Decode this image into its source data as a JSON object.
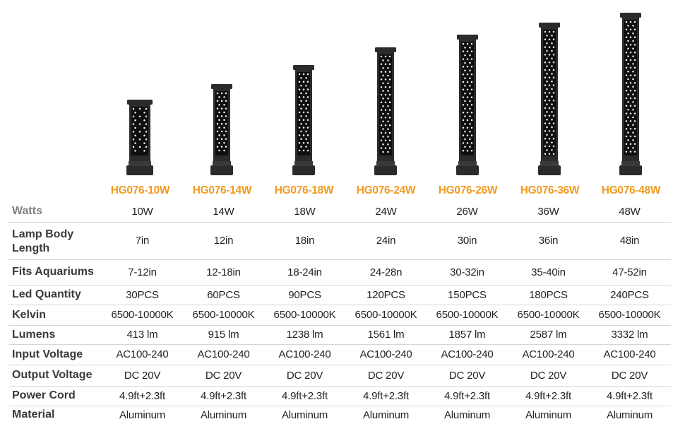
{
  "colors": {
    "accent": "#f19a1f",
    "lamp_body": "#2b2b2b",
    "led": "#f4f4f4"
  },
  "models": [
    "HG076-10W",
    "HG076-14W",
    "HG076-18W",
    "HG076-24W",
    "HG076-26W",
    "HG076-36W",
    "HG076-48W"
  ],
  "rows": [
    {
      "label": "Watts",
      "values": [
        "10W",
        "14W",
        "18W",
        "24W",
        "26W",
        "36W",
        "48W"
      ]
    },
    {
      "label": "Lamp Body Length",
      "values": [
        "7in",
        "12in",
        "18in",
        "24in",
        "30in",
        "36in",
        "48in"
      ]
    },
    {
      "label": "Fits Aquariums",
      "values": [
        "7-12in",
        "12-18in",
        "18-24in",
        "24-28n",
        "30-32in",
        "35-40in",
        "47-52in"
      ]
    },
    {
      "label": "Led Quantity",
      "values": [
        "30PCS",
        "60PCS",
        "90PCS",
        "120PCS",
        "150PCS",
        "180PCS",
        "240PCS"
      ]
    },
    {
      "label": "Kelvin",
      "values": [
        "6500-10000K",
        "6500-10000K",
        "6500-10000K",
        "6500-10000K",
        "6500-10000K",
        "6500-10000K",
        "6500-10000K"
      ]
    },
    {
      "label": "Lumens",
      "values": [
        "413 lm",
        "915 lm",
        "1238 lm",
        "1561 lm",
        "1857 lm",
        "2587 lm",
        "3332 lm"
      ]
    },
    {
      "label": "Input Voltage",
      "values": [
        "AC100-240",
        "AC100-240",
        "AC100-240",
        "AC100-240",
        "AC100-240",
        "AC100-240",
        "AC100-240"
      ]
    },
    {
      "label": "Output Voltage",
      "values": [
        "DC 20V",
        "DC 20V",
        "DC 20V",
        "DC 20V",
        "DC 20V",
        "DC 20V",
        "DC 20V"
      ]
    },
    {
      "label": "Power Cord",
      "values": [
        "4.9ft+2.3ft",
        "4.9ft+2.3ft",
        "4.9ft+2.3ft",
        "4.9ft+2.3ft",
        "4.9ft+2.3ft",
        "4.9ft+2.3ft",
        "4.9ft+2.3ft"
      ]
    },
    {
      "label": "Material",
      "values": [
        "Aluminum",
        "Aluminum",
        "Aluminum",
        "Aluminum",
        "Aluminum",
        "Aluminum",
        "Aluminum"
      ]
    }
  ]
}
